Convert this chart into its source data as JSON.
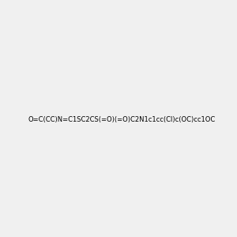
{
  "smiles": "O=C(CC)N=C1SC2CS(=O)(=O)C2N1c1cc(Cl)c(OC)cc1OC",
  "img_size": [
    300,
    300
  ],
  "background_color": "#f0f0f0",
  "bond_color": "black",
  "atom_colors": {
    "N": "blue",
    "O": "red",
    "S": "#cccc00",
    "Cl": "green"
  },
  "title": ""
}
